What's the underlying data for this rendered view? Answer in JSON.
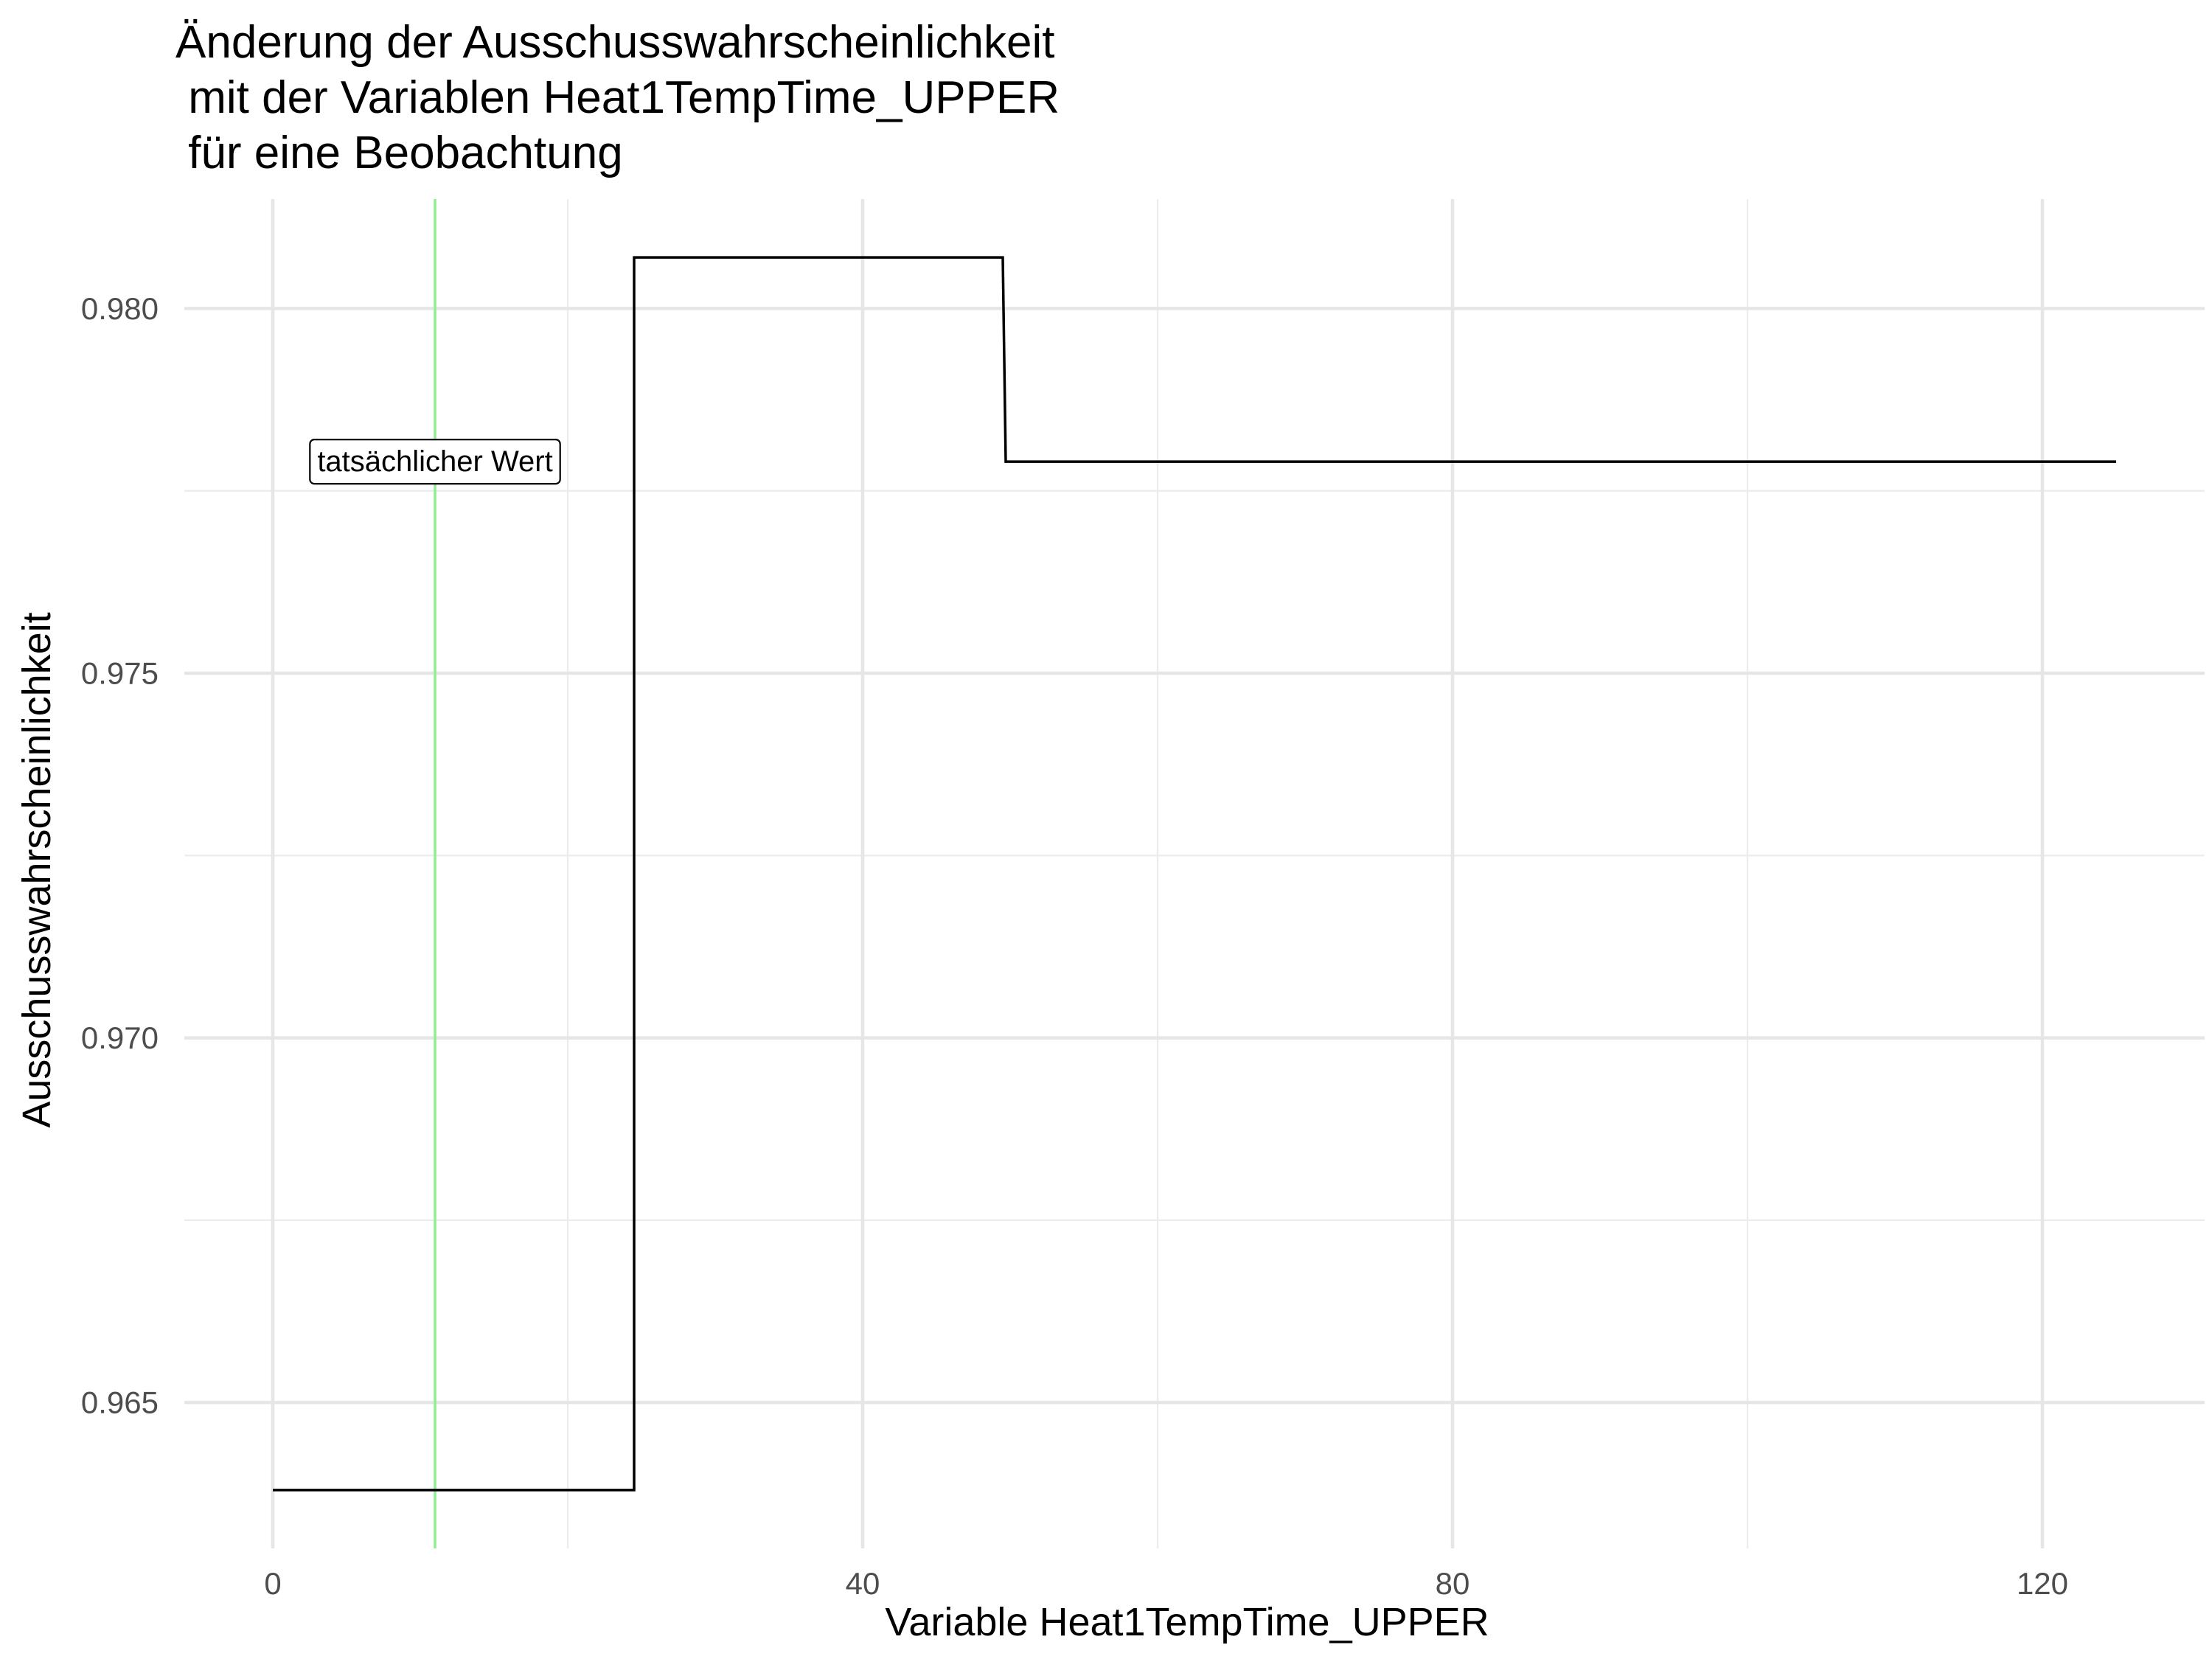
{
  "chart_data": {
    "type": "line",
    "title_lines": [
      "Änderung der Ausschusswahrscheinlichkeit",
      " mit der Variablen Heat1TempTime_UPPER",
      " für eine Beobachtung"
    ],
    "xlabel": "Variable Heat1TempTime_UPPER",
    "ylabel": "Ausschusswahrscheinlichkeit",
    "xlim": [
      -6,
      131
    ],
    "ylim": [
      0.963,
      0.9815
    ],
    "x_ticks": [
      0,
      40,
      80,
      120
    ],
    "y_ticks": [
      0.965,
      0.97,
      0.975,
      0.98
    ],
    "y_tick_labels": [
      "0.965",
      "0.970",
      "0.975",
      "0.980"
    ],
    "x_minor": [
      20,
      60,
      100
    ],
    "y_minor": [
      0.9675,
      0.9725,
      0.9775
    ],
    "grid": true,
    "series": [
      {
        "interpolation": "step",
        "color": "#000000",
        "points": [
          [
            0,
            0.9638
          ],
          [
            24.5,
            0.9638
          ],
          [
            24.5,
            0.9807
          ],
          [
            49.5,
            0.9807
          ],
          [
            49.7,
            0.9779
          ],
          [
            125,
            0.9779
          ]
        ]
      }
    ],
    "reference_line": {
      "x": 11,
      "color": "#90ee90"
    },
    "annotation": {
      "text": "tatsächlicher Wert",
      "x": 11,
      "y": 0.9779
    }
  }
}
